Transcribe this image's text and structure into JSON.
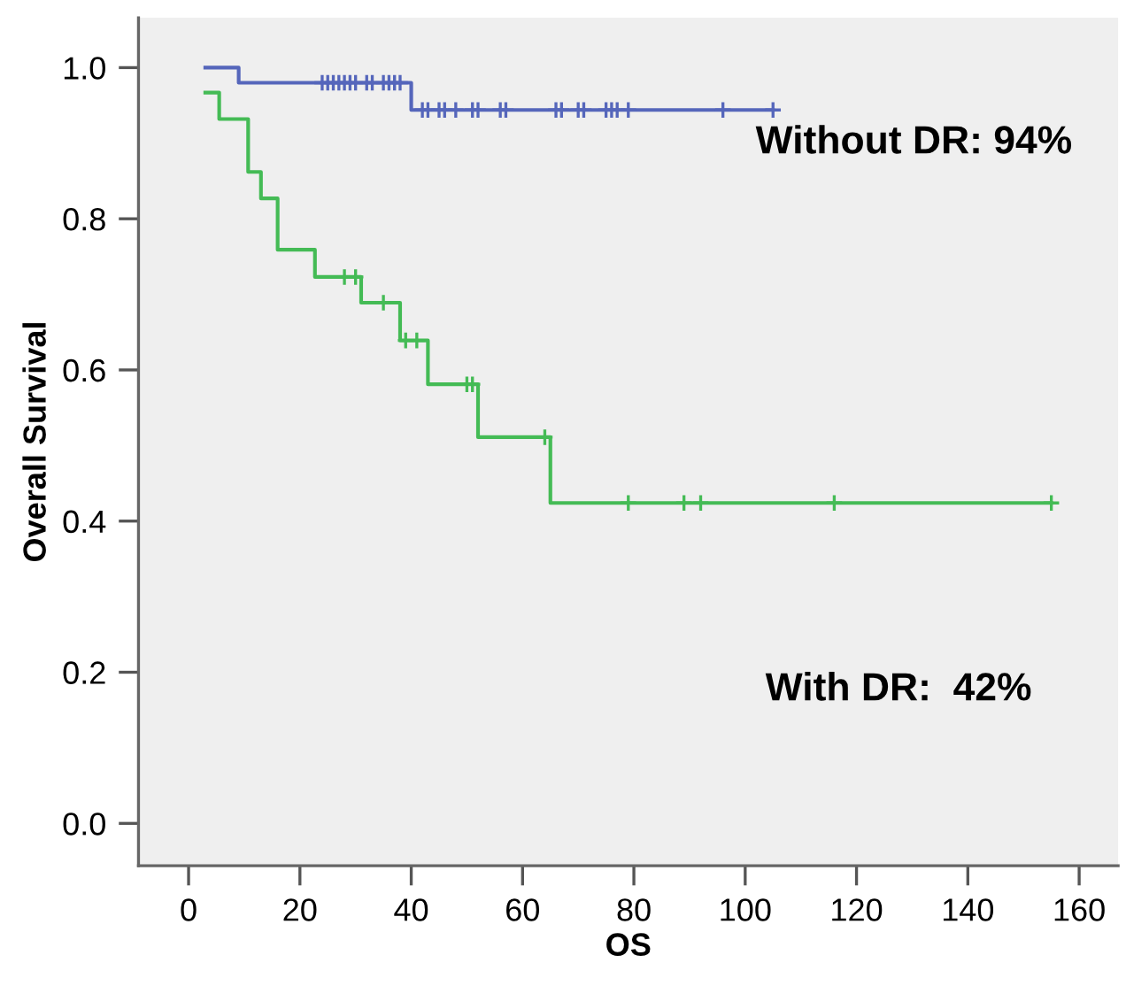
{
  "chart_data": {
    "type": "step",
    "xlabel": "OS",
    "ylabel": "Overall Survival",
    "xlim": [
      -9,
      167
    ],
    "ylim": [
      -0.056,
      1.066
    ],
    "xticks": [
      0,
      20,
      40,
      60,
      80,
      100,
      120,
      140,
      160
    ],
    "yticks": [
      {
        "value": 0,
        "label": "0.0"
      },
      {
        "value": 0.2,
        "label": "0.2"
      },
      {
        "value": 0.4,
        "label": "0.4"
      },
      {
        "value": 0.6,
        "label": "0.6"
      },
      {
        "value": 0.8,
        "label": "0.8"
      },
      {
        "value": 1,
        "label": "1.0"
      }
    ],
    "grid": false,
    "legend": false,
    "annotations": [
      "Without DR: 94%",
      "With DR:  42%"
    ],
    "series": [
      {
        "color": "#5566bb",
        "x": [
          3,
          9,
          40,
          105
        ],
        "values": [
          1.0,
          0.98,
          0.944,
          0.944
        ]
      },
      {
        "color": "#44bb55",
        "x": [
          3,
          5.5,
          10.7,
          13,
          16,
          22.7,
          31,
          38,
          43,
          52,
          65,
          155
        ],
        "values": [
          0.967,
          0.932,
          0.862,
          0.827,
          0.759,
          0.723,
          0.689,
          0.639,
          0.581,
          0.511,
          0.424,
          0.424
        ]
      },
      {
        "type": "scatter",
        "marker": "cross",
        "color": "#5566bb",
        "x": [
          24,
          25,
          26,
          27,
          28,
          29,
          30,
          32,
          33,
          35,
          36,
          37,
          38,
          42,
          43,
          45,
          46,
          48,
          51,
          52,
          56,
          57,
          66,
          67,
          70,
          71,
          75,
          76,
          77,
          79,
          96,
          105
        ],
        "values": [
          0.98,
          0.98,
          0.98,
          0.98,
          0.98,
          0.98,
          0.98,
          0.98,
          0.98,
          0.98,
          0.98,
          0.98,
          0.98,
          0.944,
          0.944,
          0.944,
          0.944,
          0.944,
          0.944,
          0.944,
          0.944,
          0.944,
          0.944,
          0.944,
          0.944,
          0.944,
          0.944,
          0.944,
          0.944,
          0.944,
          0.944,
          0.944
        ]
      },
      {
        "type": "scatter",
        "marker": "cross",
        "color": "#44bb55",
        "x": [
          28,
          30,
          35,
          39,
          41,
          50,
          51,
          64,
          79,
          89,
          92,
          116,
          155
        ],
        "values": [
          0.723,
          0.723,
          0.689,
          0.639,
          0.639,
          0.581,
          0.581,
          0.511,
          0.424,
          0.424,
          0.424,
          0.424,
          0.424
        ]
      }
    ]
  }
}
